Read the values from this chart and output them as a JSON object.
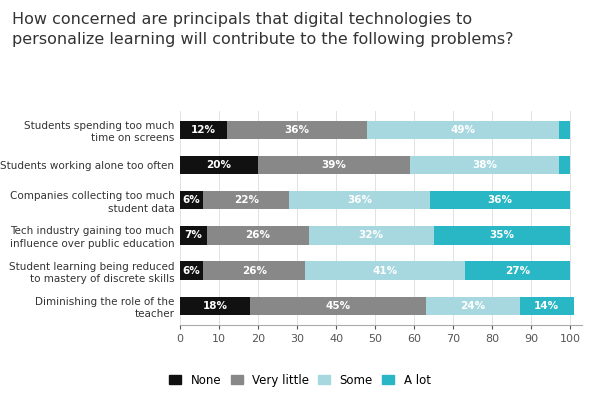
{
  "title": "How concerned are principals that digital technologies to\npersonalize learning will contribute to the following problems?",
  "categories": [
    "Students spending too much\ntime on screens",
    "Students working alone too often",
    "Companies collecting too much\nstudent data",
    "Tech industry gaining too much\ninfluence over public education",
    "Student learning being reduced\nto mastery of discrete skills",
    "Diminishing the role of the\nteacher"
  ],
  "none": [
    12,
    20,
    6,
    7,
    6,
    18
  ],
  "very_little": [
    36,
    39,
    22,
    26,
    26,
    45
  ],
  "some": [
    49,
    38,
    36,
    32,
    41,
    24
  ],
  "a_lot": [
    3,
    3,
    36,
    35,
    27,
    14
  ],
  "colors": {
    "none": "#111111",
    "very_little": "#888888",
    "some": "#a8d8df",
    "a_lot": "#29b6c5"
  },
  "legend_labels": [
    "None",
    "Very little",
    "Some",
    "A lot"
  ],
  "xlim": [
    0,
    103
  ],
  "xticks": [
    0,
    10,
    20,
    30,
    40,
    50,
    60,
    70,
    80,
    90,
    100
  ],
  "bar_height": 0.52,
  "background_color": "#ffffff",
  "title_fontsize": 11.5,
  "label_fontsize": 7.5,
  "bar_label_fontsize": 7.5,
  "tick_fontsize": 8,
  "legend_fontsize": 8.5
}
